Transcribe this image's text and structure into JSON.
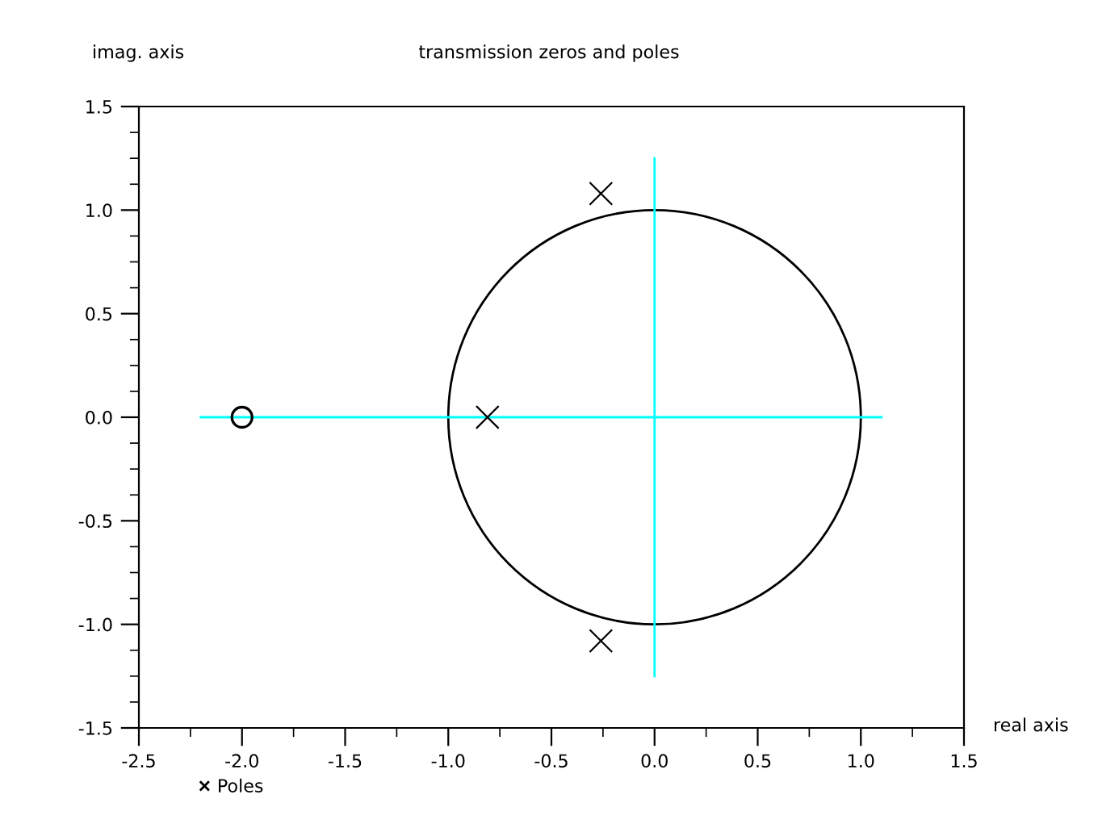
{
  "chart_data": {
    "type": "scatter",
    "title": "transmission zeros and poles",
    "xlabel": "real axis",
    "ylabel": "imag. axis",
    "xlim": [
      -2.5,
      1.5
    ],
    "ylim": [
      -1.5,
      1.5
    ],
    "xticks": [
      {
        "value": -2.5,
        "label": "-2.5"
      },
      {
        "value": -2.0,
        "label": "-2.0"
      },
      {
        "value": -1.5,
        "label": "-1.5"
      },
      {
        "value": -1.0,
        "label": "-1.0"
      },
      {
        "value": -0.5,
        "label": "-0.5"
      },
      {
        "value": 0,
        "label": "0.0"
      },
      {
        "value": 0.5,
        "label": "0.5"
      },
      {
        "value": 1.0,
        "label": "1.0"
      },
      {
        "value": 1.5,
        "label": "1.5"
      }
    ],
    "yticks": [
      {
        "value": -1.5,
        "label": "-1.5"
      },
      {
        "value": -1.0,
        "label": "-1.0"
      },
      {
        "value": -0.5,
        "label": "-0.5"
      },
      {
        "value": 0,
        "label": "0.0"
      },
      {
        "value": 0.5,
        "label": "0.5"
      },
      {
        "value": 1.0,
        "label": "1.0"
      },
      {
        "value": 1.5,
        "label": "1.5"
      }
    ],
    "grid": false,
    "legend": "bottom left",
    "series": [
      {
        "type": "line",
        "color": "#00ffff",
        "x": [
          -2.2,
          1.1
        ],
        "values": [
          0,
          0
        ]
      },
      {
        "type": "line",
        "color": "#00ffff",
        "x": [
          0,
          0
        ],
        "values": [
          -1.25,
          1.25
        ]
      },
      {
        "name": "Poles",
        "marker": "cross",
        "color": "#000000",
        "x": [
          -0.26,
          -0.81,
          -0.26
        ],
        "values": [
          1.08,
          0,
          -1.08
        ]
      },
      {
        "marker": "circle",
        "color": "#000000",
        "x": [
          -2.0
        ],
        "values": [
          0
        ]
      }
    ]
  }
}
